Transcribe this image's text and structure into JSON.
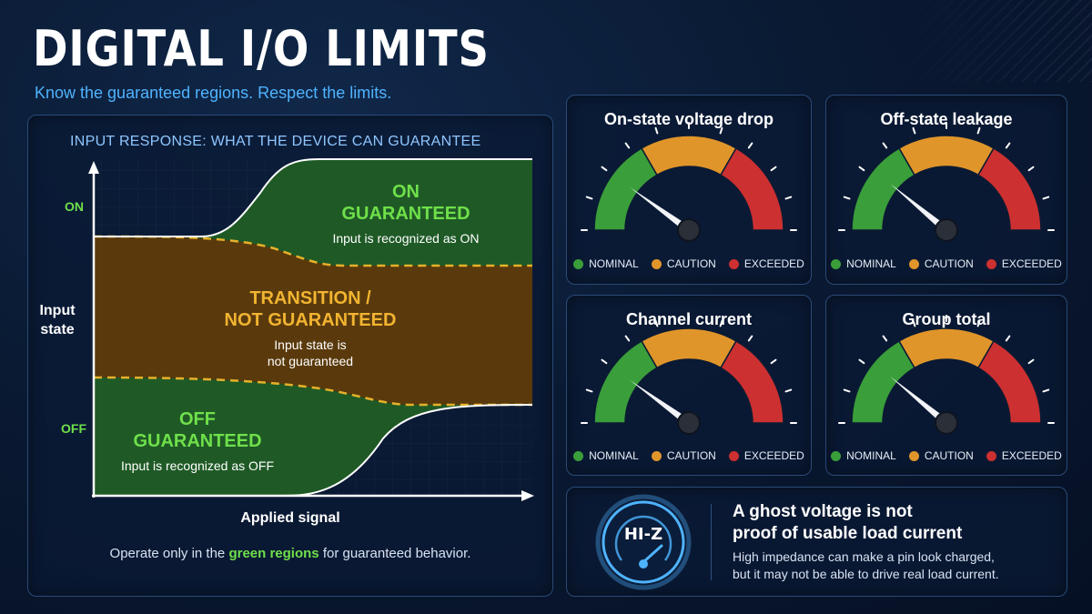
{
  "header": {
    "title": "DIGITAL I/O LIMITS",
    "subtitle": "Know the guaranteed regions. Respect the limits."
  },
  "input_response": {
    "heading": "INPUT RESPONSE: WHAT THE DEVICE CAN GUARANTEE",
    "y_axis_label": "Input\nstate",
    "x_axis_label": "Applied signal",
    "tick_on": "ON",
    "tick_off": "OFF",
    "regions": {
      "on": {
        "title": "ON\nGUARANTEED",
        "desc": "Input is recognized as ON",
        "color": "#1f5a26"
      },
      "transition": {
        "title": "TRANSITION /\nNOT GUARANTEED",
        "desc": "Input state is\nnot guaranteed",
        "color": "#5a3a0c"
      },
      "off": {
        "title": "OFF\nGUARANTEED",
        "desc": "Input is recognized as OFF",
        "color": "#1f5a26"
      }
    },
    "footnote_prefix": "Operate only in the ",
    "footnote_highlight": "green regions",
    "footnote_suffix": " for guaranteed behavior."
  },
  "gauges": [
    {
      "title": "On-state voltage drop",
      "needle_fraction": 0.2
    },
    {
      "title": "Off-state leakage",
      "needle_fraction": 0.22
    },
    {
      "title": "Channel current",
      "needle_fraction": 0.2
    },
    {
      "title": "Group total",
      "needle_fraction": 0.22
    }
  ],
  "gauge_legend": [
    {
      "label": "NOMINAL",
      "color": "#3a9e3a"
    },
    {
      "label": "CAUTION",
      "color": "#e0952a"
    },
    {
      "label": "EXCEEDED",
      "color": "#cc3030"
    }
  ],
  "hiz_note": {
    "badge": "HI-Z",
    "headline": "A ghost voltage is not\nproof of usable load current",
    "body": "High impedance can make a pin look charged,\nbut it may not be able to drive real load current.",
    "accent": "#4fb3ff"
  },
  "colors": {
    "accent_blue": "#4fb3ff",
    "green": "#3a9e3a",
    "orange": "#e0952a",
    "red": "#cc3030",
    "dashed_line": "#e6b12a"
  }
}
